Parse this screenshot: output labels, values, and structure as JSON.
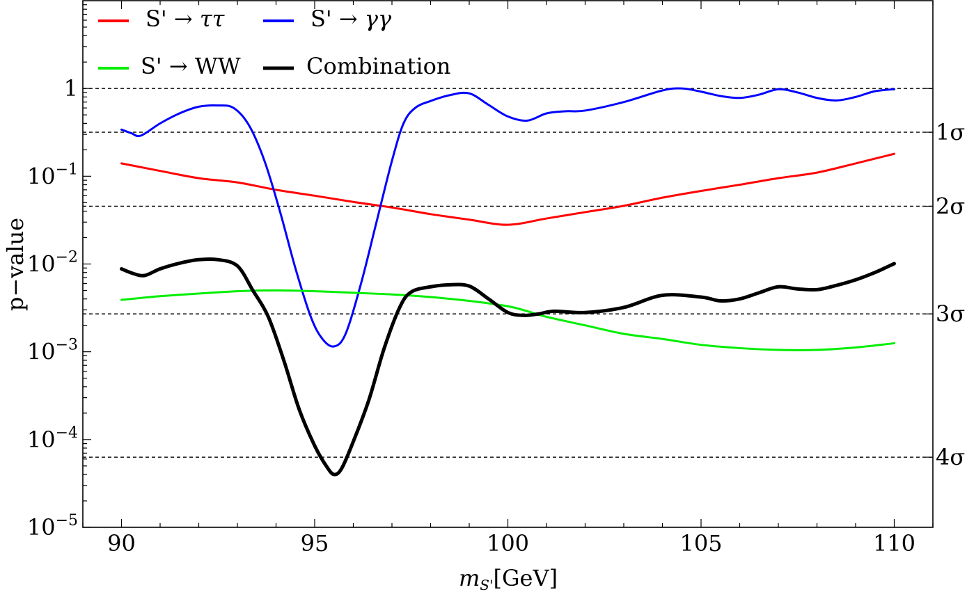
{
  "chart_data": {
    "type": "line",
    "y_scale": "log",
    "xlabel": "m_S'[GeV]",
    "xlabel_main": "m",
    "xlabel_sub": "S'",
    "xlabel_unit": "[GeV]",
    "ylabel": "p−value",
    "xlim": [
      89,
      111
    ],
    "ylim": [
      1e-05,
      10
    ],
    "x_ticks": [
      {
        "value": 90,
        "label": "90"
      },
      {
        "value": 95,
        "label": "95"
      },
      {
        "value": 100,
        "label": "100"
      },
      {
        "value": 105,
        "label": "105"
      },
      {
        "value": 110,
        "label": "110"
      }
    ],
    "y_ticks": [
      {
        "value": 1,
        "label": "1",
        "exp": ""
      },
      {
        "value": 0.1,
        "label": "10",
        "exp": "−1"
      },
      {
        "value": 0.01,
        "label": "10",
        "exp": "−2"
      },
      {
        "value": 0.001,
        "label": "10",
        "exp": "−3"
      },
      {
        "value": 0.0001,
        "label": "10",
        "exp": "−4"
      },
      {
        "value": 1e-05,
        "label": "10",
        "exp": "−5"
      }
    ],
    "reference_lines": [
      {
        "value": 1.0,
        "label": ""
      },
      {
        "value": 0.3173,
        "label": "1σ"
      },
      {
        "value": 0.0455,
        "label": "2σ"
      },
      {
        "value": 0.0027,
        "label": "3σ"
      },
      {
        "value": 6.3e-05,
        "label": "4σ"
      }
    ],
    "series": [
      {
        "name": "S' → ττ",
        "color": "#ff0000",
        "width": 3,
        "x": [
          90,
          91,
          92,
          93,
          94,
          95,
          96,
          97,
          98,
          99,
          100,
          101,
          102,
          103,
          104,
          105,
          106,
          107,
          108,
          109,
          110
        ],
        "values": [
          0.14,
          0.115,
          0.095,
          0.085,
          0.07,
          0.06,
          0.051,
          0.044,
          0.037,
          0.032,
          0.028,
          0.033,
          0.039,
          0.046,
          0.057,
          0.068,
          0.08,
          0.095,
          0.11,
          0.14,
          0.18
        ]
      },
      {
        "name": "S' → γγ",
        "color": "#0000ff",
        "width": 3,
        "x": [
          90,
          90.25,
          90.5,
          91,
          91.5,
          92,
          92.5,
          92.9,
          93.3,
          93.7,
          94.1,
          94.5,
          94.9,
          95.2,
          95.5,
          95.8,
          96.2,
          96.6,
          97,
          97.3,
          97.6,
          98,
          98.5,
          99,
          99.5,
          100,
          100.5,
          101,
          101.5,
          102,
          103,
          104,
          104.5,
          105,
          105.5,
          106,
          106.5,
          107,
          107.5,
          108,
          108.5,
          109,
          109.5,
          110
        ],
        "values": [
          0.34,
          0.31,
          0.29,
          0.4,
          0.52,
          0.62,
          0.64,
          0.6,
          0.38,
          0.15,
          0.04,
          0.009,
          0.0025,
          0.0014,
          0.00115,
          0.0016,
          0.006,
          0.03,
          0.15,
          0.4,
          0.6,
          0.72,
          0.84,
          0.88,
          0.65,
          0.48,
          0.43,
          0.52,
          0.55,
          0.56,
          0.7,
          0.95,
          1.0,
          0.92,
          0.82,
          0.78,
          0.85,
          0.98,
          0.9,
          0.78,
          0.73,
          0.8,
          0.93,
          0.98
        ]
      },
      {
        "name": "S' → WW",
        "color": "#00ee00",
        "width": 3,
        "x": [
          90,
          91,
          92,
          93,
          94,
          95,
          96,
          97,
          98,
          99,
          100,
          100.5,
          101,
          102,
          103,
          104,
          105,
          106,
          107,
          108,
          109,
          110
        ],
        "values": [
          0.0039,
          0.0043,
          0.0046,
          0.0049,
          0.005,
          0.0049,
          0.0047,
          0.0045,
          0.0042,
          0.0038,
          0.0033,
          0.0029,
          0.0025,
          0.002,
          0.0016,
          0.0014,
          0.0012,
          0.0011,
          0.00105,
          0.00105,
          0.00112,
          0.00125
        ]
      },
      {
        "name": "Combination",
        "color": "#000000",
        "width": 5,
        "x": [
          90,
          90.3,
          90.6,
          91,
          91.5,
          92,
          92.5,
          93,
          93.4,
          93.8,
          94.2,
          94.6,
          95,
          95.3,
          95.5,
          95.7,
          96,
          96.4,
          96.8,
          97.2,
          97.5,
          98,
          98.5,
          99,
          99.5,
          100,
          100.4,
          100.8,
          101.2,
          102,
          103,
          104,
          105,
          105.5,
          106,
          106.5,
          107,
          107.5,
          108,
          108.5,
          109,
          109.5,
          110
        ],
        "values": [
          0.0088,
          0.0078,
          0.0074,
          0.0088,
          0.0102,
          0.0112,
          0.0112,
          0.0095,
          0.005,
          0.0025,
          0.0008,
          0.00022,
          8.5e-05,
          5e-05,
          4e-05,
          4.7e-05,
          9.5e-05,
          0.00028,
          0.0011,
          0.0032,
          0.0048,
          0.0055,
          0.0058,
          0.0056,
          0.004,
          0.0028,
          0.0026,
          0.0027,
          0.0029,
          0.0028,
          0.0032,
          0.0044,
          0.0042,
          0.0038,
          0.004,
          0.0047,
          0.0055,
          0.0052,
          0.0051,
          0.0057,
          0.0066,
          0.008,
          0.0101
        ]
      }
    ],
    "legend": [
      {
        "label_main": "S' → ",
        "label_ital": "ττ",
        "color": "#ff0000",
        "width": 4
      },
      {
        "label_main": "S' → ",
        "label_ital": "γγ",
        "color": "#0000ff",
        "width": 4
      },
      {
        "label_main": "S' → WW",
        "label_ital": "",
        "color": "#00ee00",
        "width": 4
      },
      {
        "label_main": "Combination",
        "label_ital": "",
        "color": "#000000",
        "width": 5
      }
    ]
  }
}
